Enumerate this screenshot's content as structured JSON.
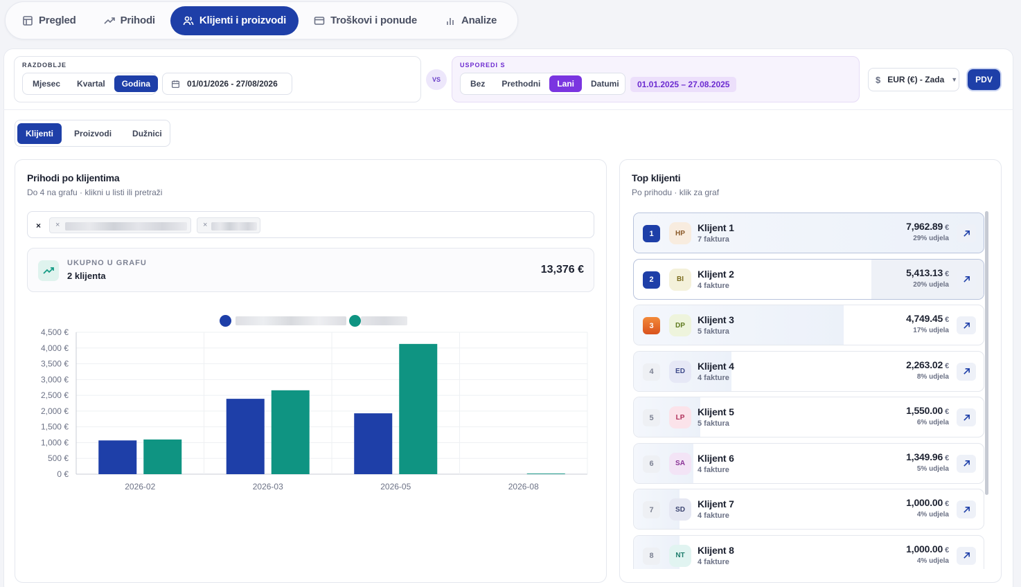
{
  "nav": {
    "tabs": [
      {
        "label": "Pregled",
        "icon": "layout-icon"
      },
      {
        "label": "Prihodi",
        "icon": "trend-up-icon"
      },
      {
        "label": "Klijenti i proizvodi",
        "icon": "users-icon",
        "active": true
      },
      {
        "label": "Troškovi i ponude",
        "icon": "card-icon"
      },
      {
        "label": "Analize",
        "icon": "bar-chart-icon"
      }
    ]
  },
  "filters": {
    "period_label": "RAZDOBLJE",
    "period_options": [
      "Mjesec",
      "Kvartal",
      "Godina"
    ],
    "period_selected": "Godina",
    "date_range": "01/01/2026 - 27/08/2026",
    "vs": "VS",
    "compare_label": "USPOREDI S",
    "compare_options": [
      "Bez",
      "Prethodni",
      "Lani",
      "Datumi"
    ],
    "compare_selected": "Lani",
    "compare_range": "01.01.2025 – 27.08.2025",
    "currency": "EUR (€) - Zada",
    "pdv": "PDV"
  },
  "subtabs": [
    "Klijenti",
    "Proizvodi",
    "Dužnici"
  ],
  "left_panel": {
    "title": "Prihodi po klijentima",
    "subtitle": "Do 4 na grafu · klikni u listi ili pretraži",
    "clear": "×",
    "chip_remove": "×",
    "total_label": "UKUPNO U GRAFU",
    "total_count": "2 klijenta",
    "total_sum": "13,376 €"
  },
  "chart_data": {
    "type": "bar",
    "categories": [
      "2026-02",
      "2026-03",
      "2026-05",
      "2026-08"
    ],
    "series": [
      {
        "color": "#1e3fa8",
        "values": [
          1070,
          2390,
          1930,
          0
        ]
      },
      {
        "color": "#0f9482",
        "values": [
          1100,
          2660,
          4130,
          20
        ]
      }
    ],
    "ylim": [
      0,
      4500
    ],
    "yticks": [
      "0 €",
      "500 €",
      "1,000 €",
      "1,500 €",
      "2,000 €",
      "2,500 €",
      "3,000 €",
      "3,500 €",
      "4,000 €",
      "4,500 €"
    ],
    "grid": true,
    "legend": "top-center"
  },
  "right_panel": {
    "title": "Top klijenti",
    "subtitle": "Po prihodu · klik za graf",
    "currency_symbol": "€",
    "clients": [
      {
        "rank": "1",
        "initials": "HP",
        "name": "Klijent 1",
        "invoices": "7 faktura",
        "amount": "7,962.89",
        "share": "29% udjela",
        "share_frac": 1.0,
        "av_bg": "#f8ecdf",
        "av_fg": "#8a5a2a"
      },
      {
        "rank": "2",
        "initials": "BI",
        "name": "Klijent 2",
        "invoices": "4 fakture",
        "amount": "5,413.13",
        "share": "20% udjela",
        "share_frac": 0.68,
        "av_bg": "#f4f1da",
        "av_fg": "#7b6c1e"
      },
      {
        "rank": "3",
        "initials": "DP",
        "name": "Klijent 3",
        "invoices": "5 faktura",
        "amount": "4,749.45",
        "share": "17% udjela",
        "share_frac": 0.6,
        "av_bg": "#eef4dc",
        "av_fg": "#5f7a1f"
      },
      {
        "rank": "4",
        "initials": "ED",
        "name": "Klijent 4",
        "invoices": "4 fakture",
        "amount": "2,263.02",
        "share": "8% udjela",
        "share_frac": 0.28,
        "av_bg": "#e6e8f6",
        "av_fg": "#3e4a8a"
      },
      {
        "rank": "5",
        "initials": "LP",
        "name": "Klijent 5",
        "invoices": "5 faktura",
        "amount": "1,550.00",
        "share": "6% udjela",
        "share_frac": 0.19,
        "av_bg": "#fbe3ea",
        "av_fg": "#b0305a"
      },
      {
        "rank": "6",
        "initials": "SA",
        "name": "Klijent 6",
        "invoices": "4 fakture",
        "amount": "1,349.96",
        "share": "5% udjela",
        "share_frac": 0.17,
        "av_bg": "#f3e4f6",
        "av_fg": "#8a3296"
      },
      {
        "rank": "7",
        "initials": "SD",
        "name": "Klijent 7",
        "invoices": "4 fakture",
        "amount": "1,000.00",
        "share": "4% udjela",
        "share_frac": 0.13,
        "av_bg": "#e6e8f3",
        "av_fg": "#3b4370"
      },
      {
        "rank": "8",
        "initials": "NT",
        "name": "Klijent 8",
        "invoices": "4 fakture",
        "amount": "1,000.00",
        "share": "4% udjela",
        "share_frac": 0.13,
        "av_bg": "#e1f4f1",
        "av_fg": "#1f7d6c"
      }
    ]
  }
}
